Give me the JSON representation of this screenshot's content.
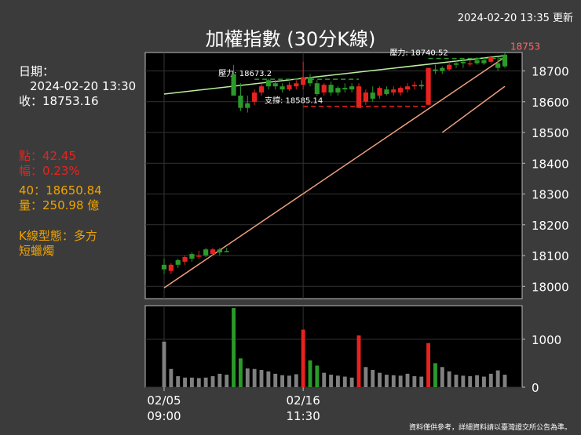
{
  "header": {
    "timestamp": "2024-02-20 13:35 更新",
    "title": "加權指數 (30分K線)"
  },
  "info": {
    "date_label": "日期：",
    "date_value": "2024-02-20 13:30",
    "close": "收：18753.16",
    "change_points": "點：42.45",
    "change_pct": "幅：0.23%",
    "ma": "40：18650.84",
    "volume": "量：250.98 億",
    "kline_pattern": "K線型態：多方",
    "kline_pattern2": "短蠟燭"
  },
  "footnote": "資料僅供參考，詳細資料請以臺灣證交所公告為準。",
  "colors": {
    "up": "#e8231f",
    "down": "#2a9a2a",
    "support": "#e8231f",
    "resistance": "#2a9a2a",
    "trend": "#f0a080",
    "upper_trend": "#b8f0a0",
    "neutral_volume": "#808080"
  },
  "chart_data": {
    "type": "candlestick",
    "title": "加權指數 (30分K線)",
    "x_tick_labels": [
      {
        "index": 0,
        "line1": "02/05",
        "line2": "09:00"
      },
      {
        "index": 20,
        "line1": "02/16",
        "line2": "11:30"
      }
    ],
    "price_axis": {
      "ylim": [
        17960,
        18760
      ],
      "ticks": [
        18000,
        18100,
        18200,
        18300,
        18400,
        18500,
        18600,
        18700
      ]
    },
    "volume_axis": {
      "ylim": [
        0,
        1700
      ],
      "ticks": [
        0,
        1000
      ]
    },
    "last_price_label": "18753",
    "candles": [
      {
        "o": 18055,
        "h": 18090,
        "l": 18040,
        "c": 18070,
        "v": 950,
        "up": false
      },
      {
        "o": 18050,
        "h": 18075,
        "l": 18040,
        "c": 18070,
        "v": 380,
        "up": true
      },
      {
        "o": 18070,
        "h": 18090,
        "l": 18060,
        "c": 18085,
        "v": 230,
        "up": false
      },
      {
        "o": 18080,
        "h": 18100,
        "l": 18070,
        "c": 18095,
        "v": 200,
        "up": true
      },
      {
        "o": 18090,
        "h": 18110,
        "l": 18080,
        "c": 18105,
        "v": 200,
        "up": false
      },
      {
        "o": 18100,
        "h": 18115,
        "l": 18090,
        "c": 18100,
        "v": 190,
        "up": true
      },
      {
        "o": 18100,
        "h": 18125,
        "l": 18095,
        "c": 18120,
        "v": 200,
        "up": false
      },
      {
        "o": 18120,
        "h": 18125,
        "l": 18100,
        "c": 18105,
        "v": 230,
        "up": true
      },
      {
        "o": 18110,
        "h": 18125,
        "l": 18100,
        "c": 18120,
        "v": 280,
        "up": false
      },
      {
        "o": 18115,
        "h": 18125,
        "l": 18110,
        "c": 18115,
        "v": 260,
        "up": false
      },
      {
        "o": 18690,
        "h": 18720,
        "l": 18620,
        "c": 18620,
        "v": 1650,
        "up": false
      },
      {
        "o": 18620,
        "h": 18660,
        "l": 18570,
        "c": 18580,
        "v": 600,
        "up": false
      },
      {
        "o": 18580,
        "h": 18620,
        "l": 18565,
        "c": 18595,
        "v": 390,
        "up": false
      },
      {
        "o": 18600,
        "h": 18640,
        "l": 18590,
        "c": 18630,
        "v": 380,
        "up": true
      },
      {
        "o": 18630,
        "h": 18660,
        "l": 18620,
        "c": 18650,
        "v": 360,
        "up": true
      },
      {
        "o": 18650,
        "h": 18675,
        "l": 18640,
        "c": 18670,
        "v": 330,
        "up": false
      },
      {
        "o": 18660,
        "h": 18670,
        "l": 18640,
        "c": 18650,
        "v": 280,
        "up": false
      },
      {
        "o": 18640,
        "h": 18660,
        "l": 18630,
        "c": 18650,
        "v": 250,
        "up": false
      },
      {
        "o": 18640,
        "h": 18665,
        "l": 18635,
        "c": 18655,
        "v": 240,
        "up": true
      },
      {
        "o": 18650,
        "h": 18670,
        "l": 18640,
        "c": 18660,
        "v": 270,
        "up": true
      },
      {
        "o": 18655,
        "h": 18730,
        "l": 18640,
        "c": 18680,
        "v": 1200,
        "up": true
      },
      {
        "o": 18680,
        "h": 18690,
        "l": 18650,
        "c": 18660,
        "v": 560,
        "up": false
      },
      {
        "o": 18660,
        "h": 18670,
        "l": 18620,
        "c": 18625,
        "v": 450,
        "up": false
      },
      {
        "o": 18630,
        "h": 18660,
        "l": 18620,
        "c": 18655,
        "v": 300,
        "up": true
      },
      {
        "o": 18655,
        "h": 18665,
        "l": 18620,
        "c": 18630,
        "v": 260,
        "up": false
      },
      {
        "o": 18630,
        "h": 18650,
        "l": 18620,
        "c": 18645,
        "v": 240,
        "up": false
      },
      {
        "o": 18645,
        "h": 18660,
        "l": 18630,
        "c": 18640,
        "v": 220,
        "up": false
      },
      {
        "o": 18640,
        "h": 18660,
        "l": 18630,
        "c": 18650,
        "v": 200,
        "up": false
      },
      {
        "o": 18650,
        "h": 18660,
        "l": 18580,
        "c": 18580,
        "v": 1080,
        "up": true
      },
      {
        "o": 18600,
        "h": 18640,
        "l": 18590,
        "c": 18630,
        "v": 420,
        "up": true
      },
      {
        "o": 18630,
        "h": 18650,
        "l": 18600,
        "c": 18610,
        "v": 360,
        "up": false
      },
      {
        "o": 18620,
        "h": 18650,
        "l": 18610,
        "c": 18645,
        "v": 300,
        "up": true
      },
      {
        "o": 18640,
        "h": 18650,
        "l": 18620,
        "c": 18625,
        "v": 260,
        "up": false
      },
      {
        "o": 18630,
        "h": 18650,
        "l": 18620,
        "c": 18640,
        "v": 250,
        "up": true
      },
      {
        "o": 18630,
        "h": 18650,
        "l": 18620,
        "c": 18645,
        "v": 240,
        "up": true
      },
      {
        "o": 18640,
        "h": 18660,
        "l": 18630,
        "c": 18650,
        "v": 280,
        "up": true
      },
      {
        "o": 18650,
        "h": 18665,
        "l": 18640,
        "c": 18655,
        "v": 230,
        "up": true
      },
      {
        "o": 18655,
        "h": 18670,
        "l": 18640,
        "c": 18650,
        "v": 220,
        "up": false
      },
      {
        "o": 18590,
        "h": 18710,
        "l": 18590,
        "c": 18710,
        "v": 920,
        "up": true
      },
      {
        "o": 18700,
        "h": 18720,
        "l": 18690,
        "c": 18705,
        "v": 500,
        "up": false
      },
      {
        "o": 18700,
        "h": 18715,
        "l": 18690,
        "c": 18710,
        "v": 420,
        "up": false
      },
      {
        "o": 18705,
        "h": 18730,
        "l": 18700,
        "c": 18720,
        "v": 330,
        "up": true
      },
      {
        "o": 18720,
        "h": 18735,
        "l": 18710,
        "c": 18725,
        "v": 260,
        "up": false
      },
      {
        "o": 18725,
        "h": 18740,
        "l": 18710,
        "c": 18730,
        "v": 240,
        "up": false
      },
      {
        "o": 18725,
        "h": 18735,
        "l": 18715,
        "c": 18725,
        "v": 230,
        "up": true
      },
      {
        "o": 18725,
        "h": 18745,
        "l": 18720,
        "c": 18735,
        "v": 250,
        "up": false
      },
      {
        "o": 18735,
        "h": 18745,
        "l": 18720,
        "c": 18725,
        "v": 220,
        "up": false
      },
      {
        "o": 18730,
        "h": 18750,
        "l": 18725,
        "c": 18745,
        "v": 280,
        "up": true
      },
      {
        "o": 18725,
        "h": 18745,
        "l": 18700,
        "c": 18710,
        "v": 350,
        "up": false
      },
      {
        "o": 18715,
        "h": 18760,
        "l": 18710,
        "c": 18753,
        "v": 260,
        "up": false
      }
    ],
    "annotations": [
      {
        "label": "壓力: 18673.2",
        "value": 18673.2,
        "kind": "resistance",
        "from": 13,
        "to": 28
      },
      {
        "label": "支撐: 18585.14",
        "value": 18585.14,
        "kind": "support",
        "from": 20,
        "to": 38
      },
      {
        "label": "壓力: 18740.52",
        "value": 18740.52,
        "kind": "resistance",
        "from": 38,
        "to": 49
      }
    ],
    "trendlines": [
      {
        "kind": "trend",
        "from": [
          0,
          17995
        ],
        "to": [
          49,
          18745
        ]
      },
      {
        "kind": "upper_trend",
        "from": [
          0,
          18625
        ],
        "to": [
          49,
          18750
        ]
      },
      {
        "kind": "trend",
        "from": [
          40,
          18500
        ],
        "to": [
          49,
          18650
        ]
      }
    ]
  }
}
